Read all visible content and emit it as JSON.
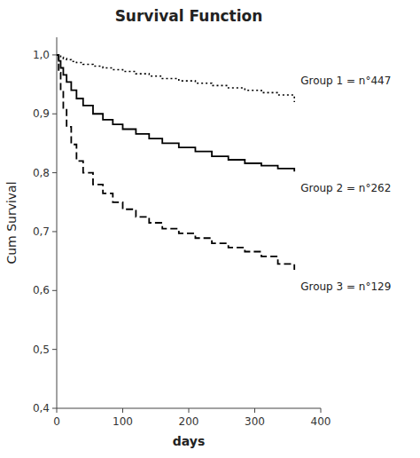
{
  "chart_data": {
    "type": "line",
    "title": "Survival Function",
    "x_label": "days",
    "y_label": "Cum Survival",
    "xlim": [
      0,
      400
    ],
    "ylim": [
      0.4,
      1.03
    ],
    "xticks": [
      0,
      100,
      200,
      300,
      400
    ],
    "yticks": [
      {
        "value": 0.4,
        "label": "0,4"
      },
      {
        "value": 0.5,
        "label": "0,5"
      },
      {
        "value": 0.6,
        "label": "0,6"
      },
      {
        "value": 0.7,
        "label": "0,7"
      },
      {
        "value": 0.8,
        "label": "0,8"
      },
      {
        "value": 0.9,
        "label": "0,9"
      },
      {
        "value": 1.0,
        "label": "1,0"
      }
    ],
    "grid": false,
    "x": [
      0,
      3,
      6,
      10,
      15,
      22,
      30,
      40,
      55,
      70,
      85,
      100,
      120,
      140,
      160,
      185,
      210,
      235,
      260,
      285,
      310,
      335,
      360
    ],
    "series": [
      {
        "name": "Group 1 = n°447",
        "color": "#000000",
        "line_style": "dotted",
        "type": "step",
        "values": [
          1.0,
          0.998,
          0.996,
          0.994,
          0.992,
          0.989,
          0.987,
          0.984,
          0.981,
          0.978,
          0.975,
          0.972,
          0.968,
          0.964,
          0.96,
          0.956,
          0.952,
          0.948,
          0.944,
          0.94,
          0.936,
          0.932,
          0.92
        ]
      },
      {
        "name": "Group 2 = n°262",
        "color": "#000000",
        "line_style": "solid",
        "type": "step",
        "values": [
          1.0,
          0.99,
          0.978,
          0.966,
          0.954,
          0.94,
          0.926,
          0.914,
          0.9,
          0.89,
          0.882,
          0.874,
          0.866,
          0.858,
          0.85,
          0.843,
          0.836,
          0.828,
          0.822,
          0.816,
          0.812,
          0.807,
          0.802
        ]
      },
      {
        "name": "Group 3 = n°129",
        "color": "#000000",
        "line_style": "dashed",
        "type": "step",
        "values": [
          1.0,
          0.97,
          0.94,
          0.91,
          0.878,
          0.848,
          0.82,
          0.8,
          0.78,
          0.765,
          0.75,
          0.738,
          0.725,
          0.715,
          0.705,
          0.697,
          0.689,
          0.68,
          0.673,
          0.666,
          0.658,
          0.645,
          0.635
        ]
      }
    ]
  }
}
